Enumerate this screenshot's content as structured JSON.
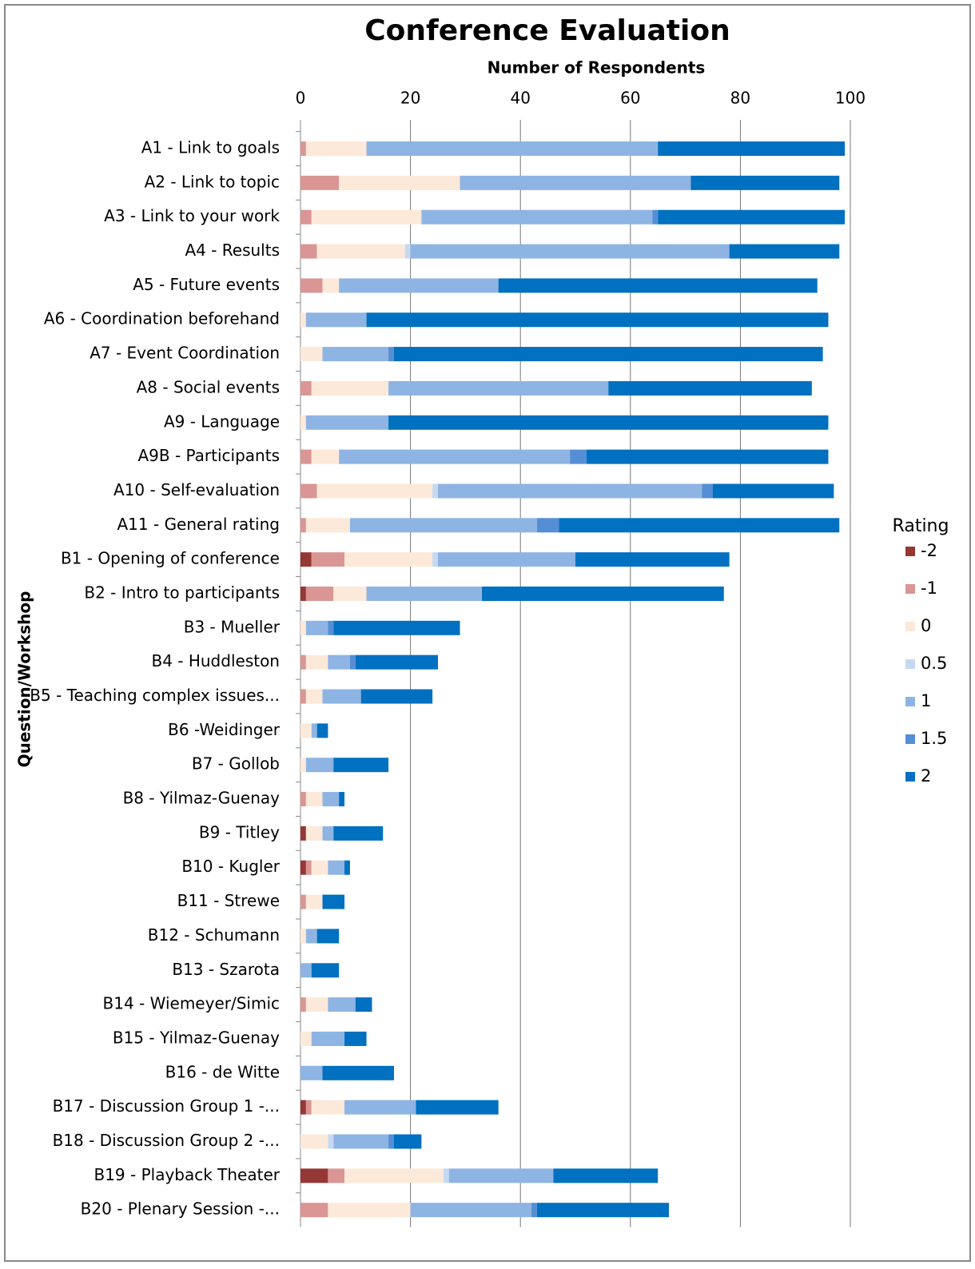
{
  "chart_data": {
    "type": "stacked-barh",
    "title": "Conference Evaluation",
    "x_label": "Number of Respondents",
    "y_label": "Question/Workshop",
    "legend_title": "Rating",
    "legend_position": "right",
    "grid": true,
    "xlim": [
      0,
      100
    ],
    "xticks": [
      0,
      20,
      40,
      60,
      80,
      100
    ],
    "categories": [
      "A1 - Link to goals",
      "A2 - Link to topic",
      "A3 - Link to your work",
      "A4 - Results",
      "A5 - Future events",
      "A6 - Coordination beforehand",
      "A7 - Event Coordination",
      "A8 - Social events",
      "A9 - Language",
      "A9B - Participants",
      "A10 - Self-evaluation",
      "A11 - General rating",
      "B1 - Opening of conference",
      "B2 - Intro to participants",
      "B3 - Mueller",
      "B4 - Huddleston",
      "B5 - Teaching complex issues...",
      "B6 -Weidinger",
      "B7 - Gollob",
      "B8 - Yilmaz-Guenay",
      "B9 - Titley",
      "B10 - Kugler",
      "B11 - Strewe",
      "B12 - Schumann",
      "B13 - Szarota",
      "B14 - Wiemeyer/Simic",
      "B15 - Yilmaz-Guenay",
      "B16 - de Witte",
      "B17 - Discussion Group 1 -...",
      "B18 - Discussion Group 2 -...",
      "B19 - Playback Theater",
      "B20 - Plenary Session -..."
    ],
    "series": [
      {
        "name": "-2",
        "color": "#953735",
        "values": [
          0,
          0,
          0,
          0,
          0,
          0,
          0,
          0,
          0,
          0,
          0,
          0,
          2,
          1,
          0,
          0,
          0,
          0,
          0,
          0,
          1,
          1,
          0,
          0,
          0,
          0,
          0,
          0,
          1,
          0,
          5,
          0
        ]
      },
      {
        "name": "-1",
        "color": "#d99694",
        "values": [
          1,
          7,
          2,
          3,
          4,
          0,
          0,
          2,
          0,
          2,
          3,
          1,
          6,
          5,
          0,
          1,
          1,
          0,
          0,
          1,
          0,
          1,
          1,
          0,
          0,
          1,
          0,
          0,
          1,
          0,
          3,
          5
        ]
      },
      {
        "name": "0",
        "color": "#fde9d9",
        "values": [
          11,
          22,
          20,
          16,
          3,
          1,
          4,
          14,
          1,
          5,
          21,
          8,
          16,
          6,
          1,
          4,
          3,
          2,
          1,
          3,
          3,
          3,
          3,
          1,
          0,
          4,
          2,
          0,
          6,
          5,
          18,
          15
        ]
      },
      {
        "name": "0.5",
        "color": "#c6d9f1",
        "values": [
          0,
          0,
          0,
          1,
          0,
          0,
          0,
          0,
          0,
          0,
          1,
          0,
          1,
          0,
          0,
          0,
          0,
          0,
          0,
          0,
          0,
          0,
          0,
          0,
          0,
          0,
          0,
          0,
          0,
          1,
          1,
          0
        ]
      },
      {
        "name": "1",
        "color": "#8eb4e3",
        "values": [
          53,
          42,
          42,
          58,
          29,
          11,
          12,
          40,
          15,
          42,
          48,
          34,
          25,
          21,
          4,
          4,
          7,
          1,
          5,
          3,
          2,
          3,
          0,
          2,
          2,
          5,
          6,
          4,
          13,
          10,
          19,
          22
        ]
      },
      {
        "name": "1.5",
        "color": "#558ed5",
        "values": [
          0,
          0,
          1,
          0,
          0,
          0,
          1,
          0,
          0,
          3,
          2,
          4,
          0,
          0,
          1,
          1,
          0,
          0,
          0,
          0,
          0,
          0,
          0,
          0,
          0,
          0,
          0,
          0,
          0,
          1,
          0,
          1
        ]
      },
      {
        "name": "2",
        "color": "#0070c0",
        "values": [
          34,
          27,
          34,
          20,
          58,
          84,
          78,
          37,
          80,
          44,
          22,
          51,
          28,
          44,
          23,
          15,
          13,
          2,
          10,
          1,
          9,
          1,
          4,
          4,
          5,
          3,
          4,
          13,
          15,
          5,
          19,
          24
        ]
      }
    ]
  }
}
